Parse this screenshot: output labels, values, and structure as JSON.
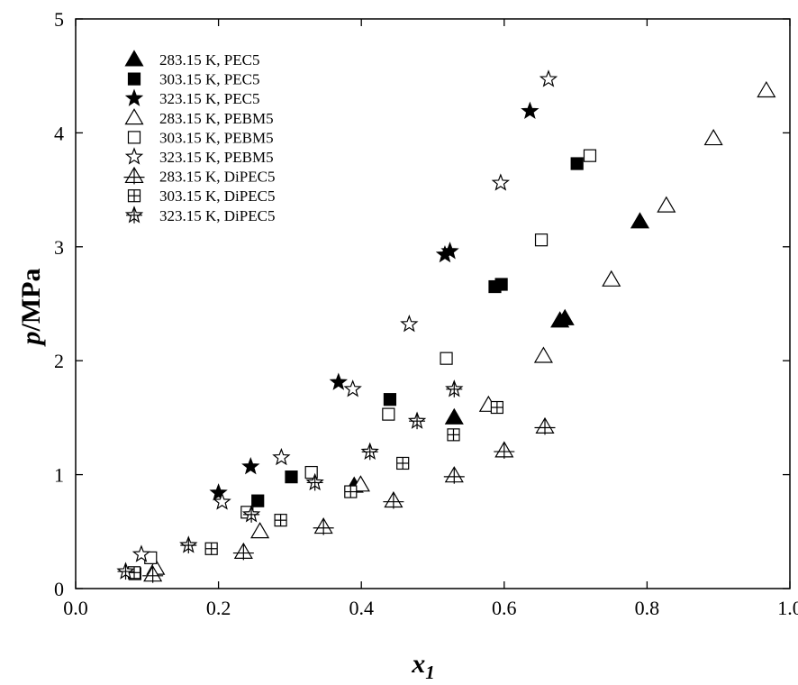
{
  "chart_data": {
    "type": "scatter",
    "xlabel": {
      "main": "x",
      "sub": "1"
    },
    "ylabel": {
      "main": "p",
      "rest": "/MPa"
    },
    "xlim": [
      0.0,
      1.0
    ],
    "ylim": [
      0,
      5
    ],
    "xticks": [
      "0.0",
      "0.2",
      "0.4",
      "0.6",
      "0.8",
      "1.0"
    ],
    "yticks": [
      "0",
      "1",
      "2",
      "3",
      "4",
      "5"
    ],
    "grid": false,
    "legend_position": "top-left",
    "series": [
      {
        "name": "283.15 K, PEC5",
        "marker": "triangle-filled",
        "points": [
          [
            0.39,
            0.9
          ],
          [
            0.53,
            1.5
          ],
          [
            0.678,
            2.35
          ],
          [
            0.685,
            2.37
          ],
          [
            0.79,
            3.22
          ]
        ]
      },
      {
        "name": "303.15 K, PEC5",
        "marker": "square-filled",
        "points": [
          [
            0.255,
            0.77
          ],
          [
            0.302,
            0.98
          ],
          [
            0.44,
            1.66
          ],
          [
            0.587,
            2.65
          ],
          [
            0.596,
            2.67
          ],
          [
            0.702,
            3.73
          ]
        ]
      },
      {
        "name": "323.15 K, PEC5",
        "marker": "star-filled",
        "points": [
          [
            0.2,
            0.84
          ],
          [
            0.245,
            1.07
          ],
          [
            0.368,
            1.81
          ],
          [
            0.517,
            2.93
          ],
          [
            0.524,
            2.96
          ],
          [
            0.636,
            4.19
          ]
        ]
      },
      {
        "name": "283.15 K, PEBM5",
        "marker": "triangle-open",
        "points": [
          [
            0.112,
            0.18
          ],
          [
            0.258,
            0.5
          ],
          [
            0.399,
            0.91
          ],
          [
            0.578,
            1.61
          ],
          [
            0.655,
            2.04
          ],
          [
            0.75,
            2.71
          ],
          [
            0.827,
            3.36
          ],
          [
            0.893,
            3.95
          ],
          [
            0.967,
            4.37
          ]
        ]
      },
      {
        "name": "303.15 K, PEBM5",
        "marker": "square-open",
        "points": [
          [
            0.083,
            0.13
          ],
          [
            0.105,
            0.27
          ],
          [
            0.24,
            0.67
          ],
          [
            0.33,
            1.02
          ],
          [
            0.438,
            1.53
          ],
          [
            0.519,
            2.02
          ],
          [
            0.652,
            3.06
          ],
          [
            0.72,
            3.8
          ]
        ]
      },
      {
        "name": "323.15 K, PEBM5",
        "marker": "star-open",
        "points": [
          [
            0.092,
            0.3
          ],
          [
            0.205,
            0.76
          ],
          [
            0.288,
            1.15
          ],
          [
            0.388,
            1.75
          ],
          [
            0.467,
            2.32
          ],
          [
            0.595,
            3.56
          ],
          [
            0.662,
            4.47
          ]
        ]
      },
      {
        "name": "283.15 K, DiPEC5",
        "marker": "triangle-cross",
        "points": [
          [
            0.108,
            0.12
          ],
          [
            0.235,
            0.32
          ],
          [
            0.347,
            0.54
          ],
          [
            0.445,
            0.77
          ],
          [
            0.53,
            0.99
          ],
          [
            0.6,
            1.21
          ],
          [
            0.657,
            1.42
          ]
        ]
      },
      {
        "name": "303.15 K, DiPEC5",
        "marker": "square-cross",
        "points": [
          [
            0.082,
            0.14
          ],
          [
            0.19,
            0.35
          ],
          [
            0.287,
            0.6
          ],
          [
            0.385,
            0.85
          ],
          [
            0.458,
            1.1
          ],
          [
            0.529,
            1.35
          ],
          [
            0.59,
            1.59
          ]
        ]
      },
      {
        "name": "323.15 K, DiPEC5",
        "marker": "star-cross",
        "points": [
          [
            0.07,
            0.15
          ],
          [
            0.158,
            0.38
          ],
          [
            0.246,
            0.65
          ],
          [
            0.335,
            0.93
          ],
          [
            0.412,
            1.2
          ],
          [
            0.478,
            1.47
          ],
          [
            0.53,
            1.75
          ]
        ]
      }
    ]
  }
}
